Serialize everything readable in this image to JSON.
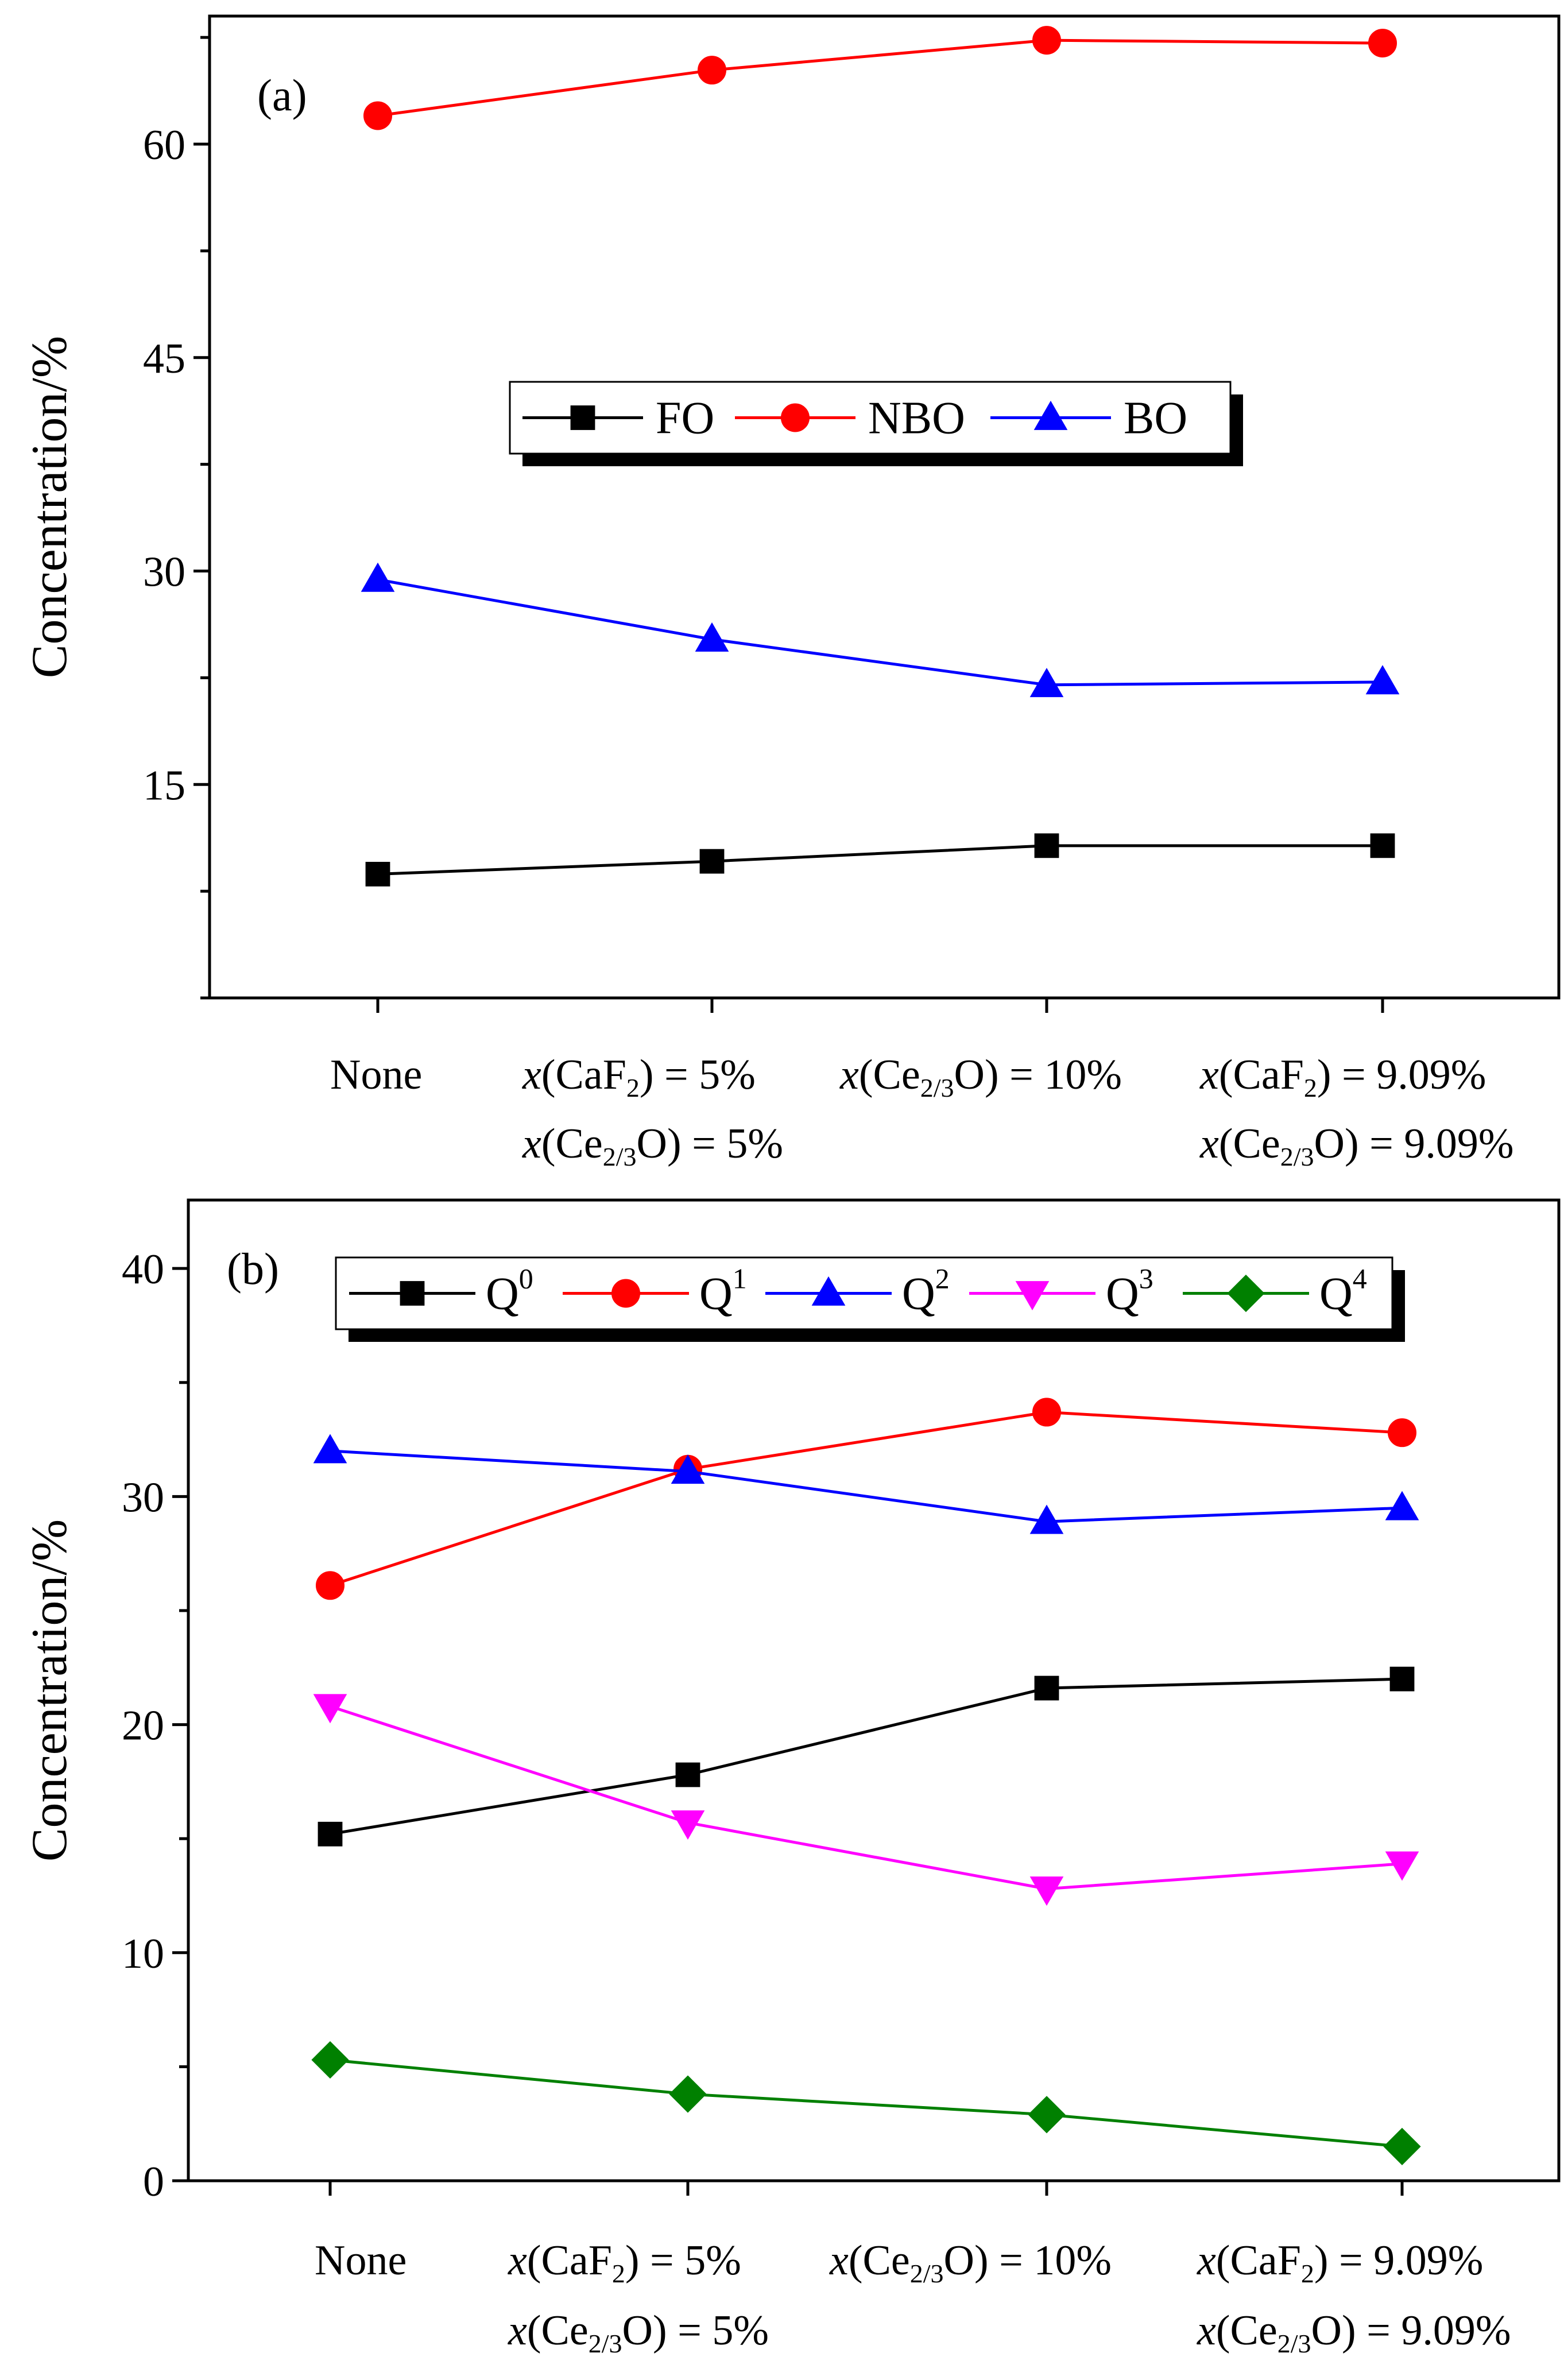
{
  "chart_data": [
    {
      "panel_label": "(a)",
      "type": "line",
      "ylabel": "Concentration/%",
      "xlabel": "",
      "ylim": [
        0,
        69
      ],
      "yticks": [
        "15",
        "30",
        "45",
        "60"
      ],
      "categories": [
        {
          "line1": {
            "pre": "None"
          }
        },
        {
          "line1": {
            "pre": "",
            "it": "x",
            "mid": "(CaF",
            "sub": "2",
            "post": ") = 5%"
          },
          "line2": {
            "pre": "",
            "it": "x",
            "mid": "(Ce",
            "sub": "2/3",
            "post": "O) = 5%"
          }
        },
        {
          "line1": {
            "pre": "",
            "it": "x",
            "mid": "(Ce",
            "sub": "2/3",
            "post": "O) = 10%"
          }
        },
        {
          "line1": {
            "pre": "",
            "it": "x",
            "mid": "(CaF",
            "sub": "2",
            "post": ") = 9.09%"
          },
          "line2": {
            "pre": "",
            "it": "x",
            "mid": "(Ce",
            "sub": "2/3",
            "post": "O) = 9.09%"
          }
        }
      ],
      "legend": {
        "placement": "center"
      },
      "series": [
        {
          "name": "FO",
          "sup": "",
          "color": "#000000",
          "marker": "square",
          "values": [
            8.7,
            9.6,
            10.7,
            10.7
          ]
        },
        {
          "name": "NBO",
          "sup": "",
          "color": "#ff0000",
          "marker": "circle",
          "values": [
            62.0,
            65.2,
            67.3,
            67.1
          ]
        },
        {
          "name": "BO",
          "sup": "",
          "color": "#0000ff",
          "marker": "triangle-up",
          "values": [
            29.4,
            25.2,
            22.0,
            22.2
          ]
        }
      ]
    },
    {
      "panel_label": "(b)",
      "type": "line",
      "ylabel": "Concentration/%",
      "xlabel": "",
      "ylim": [
        0,
        43
      ],
      "yticks": [
        "0",
        "10",
        "20",
        "30",
        "40"
      ],
      "categories": [
        {
          "line1": {
            "pre": "None"
          }
        },
        {
          "line1": {
            "pre": "",
            "it": "x",
            "mid": "(CaF",
            "sub": "2",
            "post": ") = 5%"
          },
          "line2": {
            "pre": "",
            "it": "x",
            "mid": "(Ce",
            "sub": "2/3",
            "post": "O) = 5%"
          }
        },
        {
          "line1": {
            "pre": "",
            "it": "x",
            "mid": "(Ce",
            "sub": "2/3",
            "post": "O) = 10%"
          }
        },
        {
          "line1": {
            "pre": "",
            "it": "x",
            "mid": "(CaF",
            "sub": "2",
            "post": ") = 9.09%"
          },
          "line2": {
            "pre": "",
            "it": "x",
            "mid": "(Ce",
            "sub": "2/3",
            "post": "O) = 9.09%"
          }
        }
      ],
      "legend": {
        "placement": "top"
      },
      "series": [
        {
          "name": "Q",
          "sup": "0",
          "color": "#000000",
          "marker": "square",
          "values": [
            15.2,
            17.8,
            21.6,
            22.0
          ]
        },
        {
          "name": "Q",
          "sup": "1",
          "color": "#ff0000",
          "marker": "circle",
          "values": [
            26.1,
            31.2,
            33.7,
            32.8
          ]
        },
        {
          "name": "Q",
          "sup": "2",
          "color": "#0000ff",
          "marker": "triangle-up",
          "values": [
            32.0,
            31.1,
            28.9,
            29.5
          ]
        },
        {
          "name": "Q",
          "sup": "3",
          "color": "#ff00ff",
          "marker": "triangle-down",
          "values": [
            20.8,
            15.7,
            12.8,
            13.9
          ]
        },
        {
          "name": "Q",
          "sup": "4",
          "color": "#008000",
          "marker": "diamond",
          "values": [
            5.3,
            3.8,
            2.9,
            1.5
          ]
        }
      ]
    }
  ]
}
